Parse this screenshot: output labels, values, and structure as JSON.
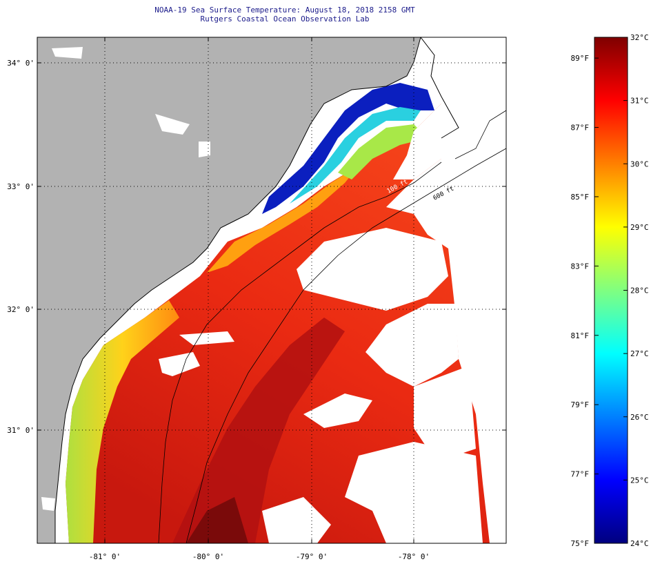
{
  "title": "NOAA-19 Sea Surface Temperature:  August 18, 2018 2158 GMT",
  "subtitle": "Rutgers Coastal Ocean Observation Lab",
  "map": {
    "lat_labels": [
      "34° 0'",
      "33° 0'",
      "32° 0'",
      "31° 0'"
    ],
    "lon_labels": [
      "-81° 0'",
      "-80° 0'",
      "-79° 0'",
      "-78° 0'"
    ],
    "isobath_labels": [
      "100 ft",
      "600 ft"
    ],
    "colors": {
      "land": "#b2b2b2",
      "cloud": "#ffffff",
      "coast": "#000000"
    }
  },
  "colorbar": {
    "fahrenheit": [
      "89°F",
      "87°F",
      "85°F",
      "83°F",
      "81°F",
      "79°F",
      "77°F",
      "75°F"
    ],
    "celsius": [
      "32°C",
      "31°C",
      "30°C",
      "29°C",
      "28°C",
      "27°C",
      "26°C",
      "25°C",
      "24°C"
    ],
    "range_c": [
      24,
      32
    ],
    "range_f": [
      75,
      89.6
    ],
    "colormap": [
      "#00007f",
      "#0000ff",
      "#0080ff",
      "#00ffff",
      "#80ff80",
      "#ffff00",
      "#ff8000",
      "#ff0000",
      "#7f0000"
    ]
  }
}
